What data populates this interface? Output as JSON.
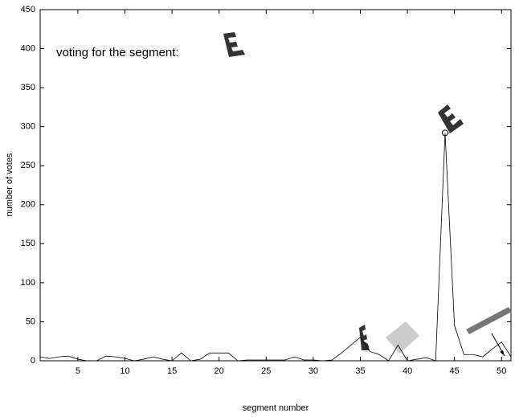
{
  "chart_data": {
    "type": "line",
    "annotation": "voting for the segment:",
    "x_label": "segment number",
    "y_label": "number of votes",
    "x": [
      1,
      2,
      3,
      4,
      5,
      6,
      7,
      8,
      9,
      10,
      11,
      12,
      13,
      14,
      15,
      16,
      17,
      18,
      19,
      20,
      21,
      22,
      23,
      24,
      25,
      26,
      27,
      28,
      29,
      30,
      31,
      32,
      33,
      34,
      35,
      36,
      37,
      38,
      39,
      40,
      41,
      42,
      43,
      44,
      45,
      46,
      47,
      48,
      49,
      50,
      51
    ],
    "series": [
      {
        "color": "#000000",
        "values": [
          5,
          3,
          5,
          6,
          2,
          0,
          0,
          6,
          5,
          3,
          0,
          2,
          5,
          2,
          0,
          10,
          0,
          2,
          10,
          10,
          10,
          0,
          1,
          1,
          1,
          1,
          1,
          5,
          1,
          1,
          0,
          1,
          10,
          20,
          30,
          12,
          8,
          0,
          20,
          0,
          2,
          4,
          0,
          292,
          45,
          8,
          8,
          5,
          15,
          24,
          5
        ]
      }
    ],
    "xlim": [
      1,
      51
    ],
    "ylim": [
      0,
      450
    ],
    "xticks": [
      5,
      10,
      15,
      20,
      25,
      30,
      35,
      40,
      45,
      50
    ],
    "yticks": [
      0,
      50,
      100,
      150,
      200,
      250,
      300,
      350,
      400,
      450
    ]
  }
}
